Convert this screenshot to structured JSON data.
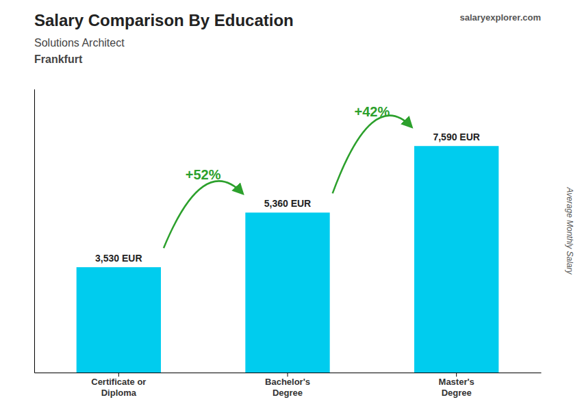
{
  "chart_data": {
    "type": "bar",
    "title": "Salary Comparison By Education",
    "subtitle": [
      "Solutions Architect",
      "Frankfurt"
    ],
    "ylabel": "Average Monthly Salary",
    "categories": [
      "Certificate or\nDiploma",
      "Bachelor's\nDegree",
      "Master's\nDegree"
    ],
    "values": [
      3530,
      5360,
      7590
    ],
    "value_labels": [
      "3,530 EUR",
      "5,360 EUR",
      "7,590 EUR"
    ],
    "data_labels": true,
    "annotations": [
      "+52%",
      "+42%",
      "salaryexplorer.com"
    ],
    "color": "#00ccee",
    "ylim": [
      0,
      9500
    ],
    "tick_labels": "x",
    "grid": false
  }
}
